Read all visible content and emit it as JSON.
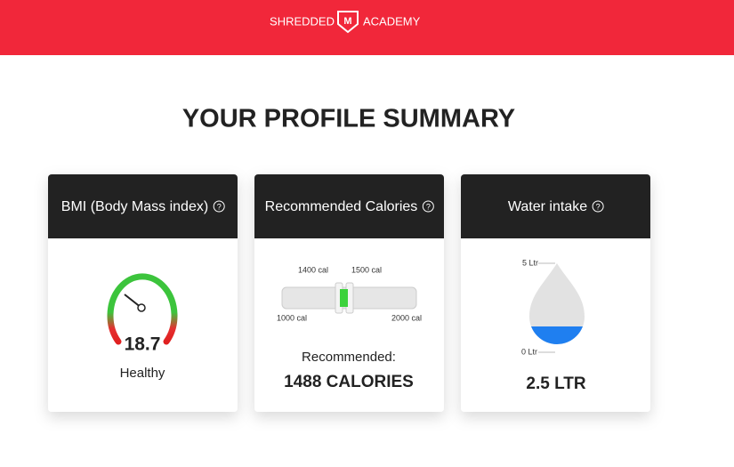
{
  "header": {
    "brand_left": "SHREDDED",
    "brand_right": "ACADEMY"
  },
  "title": "YOUR PROFILE SUMMARY",
  "cards": [
    {
      "heading": "BMI (Body Mass index)",
      "help": "?",
      "value": "18.7",
      "status": "Healthy"
    },
    {
      "heading": "Recommended Calories",
      "help": "?",
      "range_low": "1400 cal",
      "range_high": "1500 cal",
      "min": "1000 cal",
      "max": "2000 cal",
      "label": "Recommended:",
      "value": "1488 CALORIES"
    },
    {
      "heading": "Water intake",
      "help": "?",
      "max": "5 Ltr",
      "min": "0 Ltr",
      "value": "2.5 LTR"
    }
  ]
}
